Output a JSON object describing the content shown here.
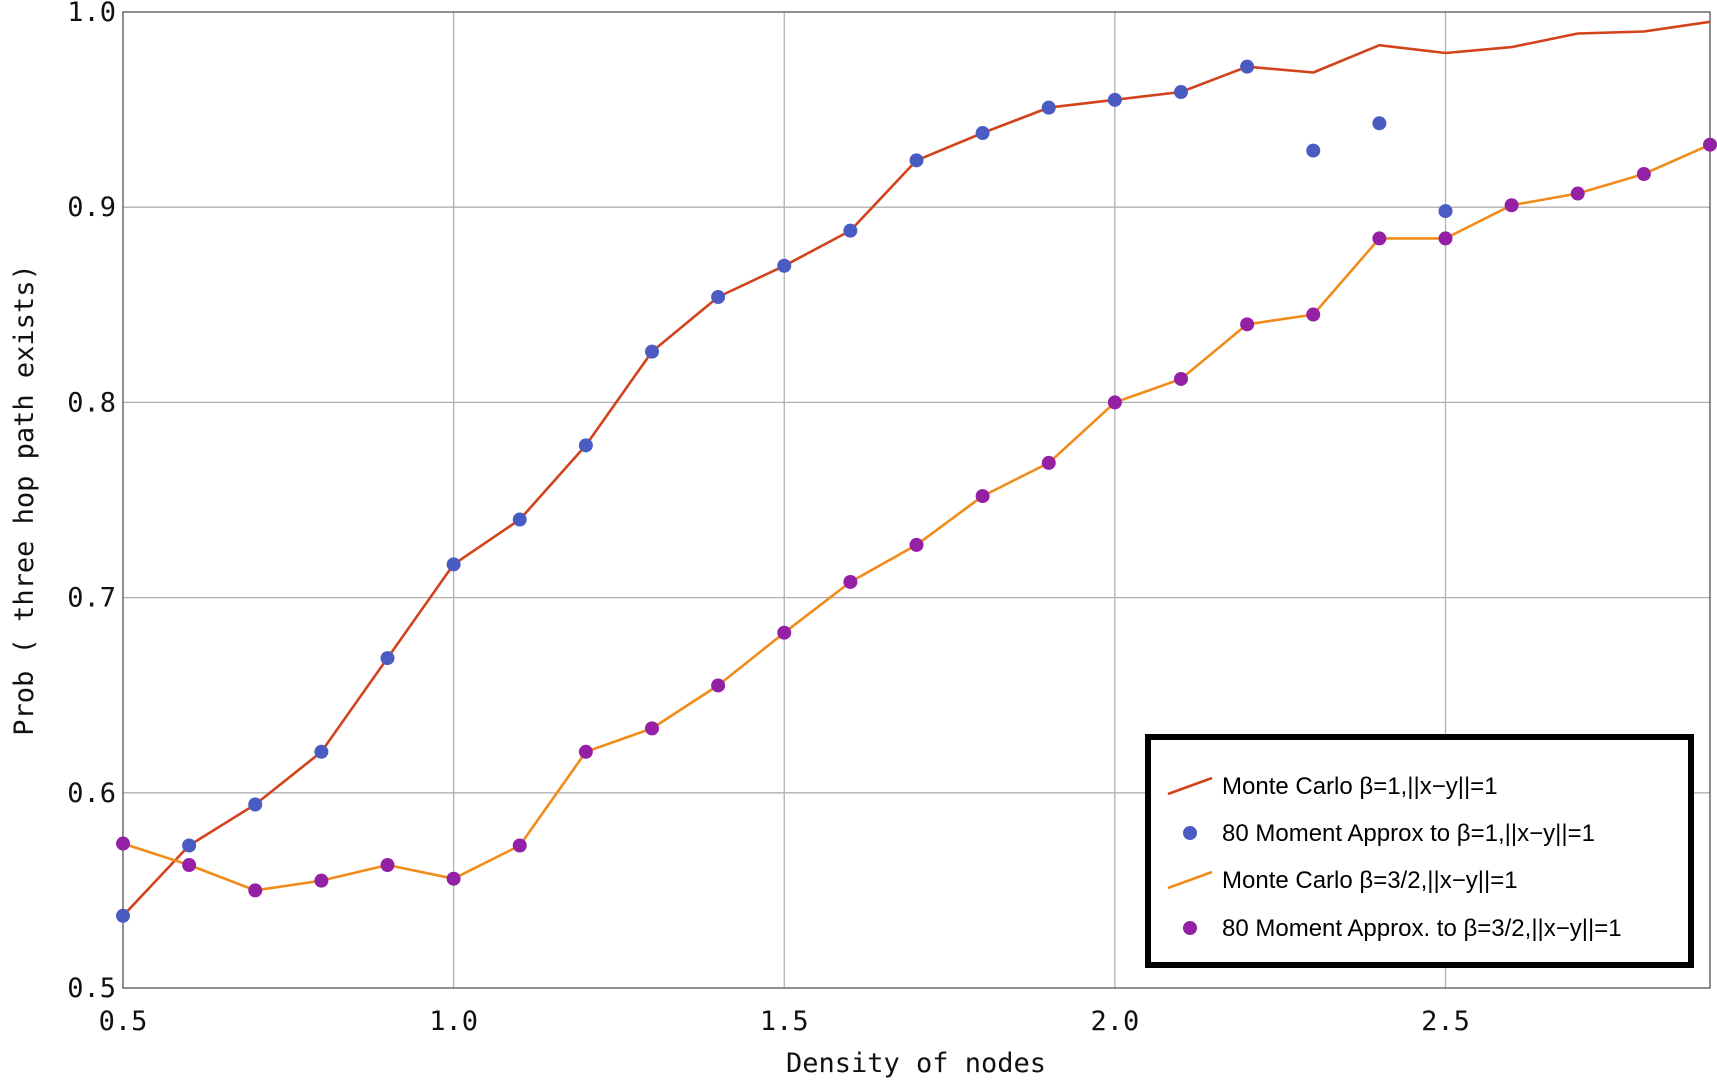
{
  "chart_data": {
    "type": "line",
    "title": "",
    "xlabel": "Density of nodes",
    "ylabel": "Prob ( three hop path exists)",
    "xlim": [
      0.5,
      2.9
    ],
    "ylim": [
      0.5,
      1.0
    ],
    "xticks": [
      0.5,
      1.0,
      1.5,
      2.0,
      2.5
    ],
    "xtick_labels": [
      "0.5",
      "1.0",
      "1.5",
      "2.0",
      "2.5"
    ],
    "yticks": [
      0.5,
      0.6,
      0.7,
      0.8,
      0.9,
      1.0
    ],
    "ytick_labels": [
      "0.5",
      "0.6",
      "0.7",
      "0.8",
      "0.9",
      "1.0"
    ],
    "grid": true,
    "legend_position": "bottom-right",
    "series": [
      {
        "name": "Monte Carlo β=1,||x−y||=1",
        "kind": "line",
        "color": "#d2431c",
        "x": [
          0.5,
          0.6,
          0.7,
          0.8,
          0.9,
          1.0,
          1.1,
          1.2,
          1.3,
          1.4,
          1.5,
          1.6,
          1.7,
          1.8,
          1.9,
          2.0,
          2.1,
          2.2,
          2.3,
          2.4,
          2.5,
          2.6,
          2.7,
          2.8,
          2.9
        ],
        "y": [
          0.537,
          0.573,
          0.594,
          0.621,
          0.669,
          0.717,
          0.74,
          0.778,
          0.826,
          0.854,
          0.87,
          0.888,
          0.924,
          0.938,
          0.951,
          0.955,
          0.959,
          0.972,
          0.969,
          0.983,
          0.979,
          0.982,
          0.989,
          0.99,
          0.995
        ]
      },
      {
        "name": "80 Moment Approx to β=1,||x−y||=1",
        "kind": "points",
        "color": "#4a5cc1",
        "x": [
          0.5,
          0.6,
          0.7,
          0.8,
          0.9,
          1.0,
          1.1,
          1.2,
          1.3,
          1.4,
          1.5,
          1.6,
          1.7,
          1.8,
          1.9,
          2.0,
          2.1,
          2.2,
          2.3,
          2.4,
          2.5
        ],
        "y": [
          0.537,
          0.573,
          0.594,
          0.621,
          0.669,
          0.717,
          0.74,
          0.778,
          0.826,
          0.854,
          0.87,
          0.888,
          0.924,
          0.938,
          0.951,
          0.955,
          0.959,
          0.972,
          0.929,
          0.943,
          0.898
        ]
      },
      {
        "name": "Monte Carlo β=3/2,||x−y||=1",
        "kind": "line",
        "color": "#f08c1a",
        "x": [
          0.5,
          0.6,
          0.7,
          0.8,
          0.9,
          1.0,
          1.1,
          1.2,
          1.3,
          1.4,
          1.5,
          1.6,
          1.7,
          1.8,
          1.9,
          2.0,
          2.1,
          2.2,
          2.3,
          2.4,
          2.5,
          2.6,
          2.7,
          2.8,
          2.9
        ],
        "y": [
          0.574,
          0.563,
          0.55,
          0.555,
          0.563,
          0.556,
          0.573,
          0.621,
          0.633,
          0.655,
          0.682,
          0.708,
          0.727,
          0.752,
          0.769,
          0.8,
          0.812,
          0.84,
          0.845,
          0.884,
          0.884,
          0.901,
          0.907,
          0.917,
          0.932
        ]
      },
      {
        "name": "80 Moment Approx. to β=3/2,||x−y||=1",
        "kind": "points",
        "color": "#9420a6",
        "x": [
          0.5,
          0.6,
          0.7,
          0.8,
          0.9,
          1.0,
          1.1,
          1.2,
          1.3,
          1.4,
          1.5,
          1.6,
          1.7,
          1.8,
          1.9,
          2.0,
          2.1,
          2.2,
          2.3,
          2.4,
          2.5,
          2.6,
          2.7,
          2.8,
          2.9
        ],
        "y": [
          0.574,
          0.563,
          0.55,
          0.555,
          0.563,
          0.556,
          0.573,
          0.621,
          0.633,
          0.655,
          0.682,
          0.708,
          0.727,
          0.752,
          0.769,
          0.8,
          0.812,
          0.84,
          0.845,
          0.884,
          0.884,
          0.901,
          0.907,
          0.917,
          0.932
        ]
      }
    ]
  }
}
